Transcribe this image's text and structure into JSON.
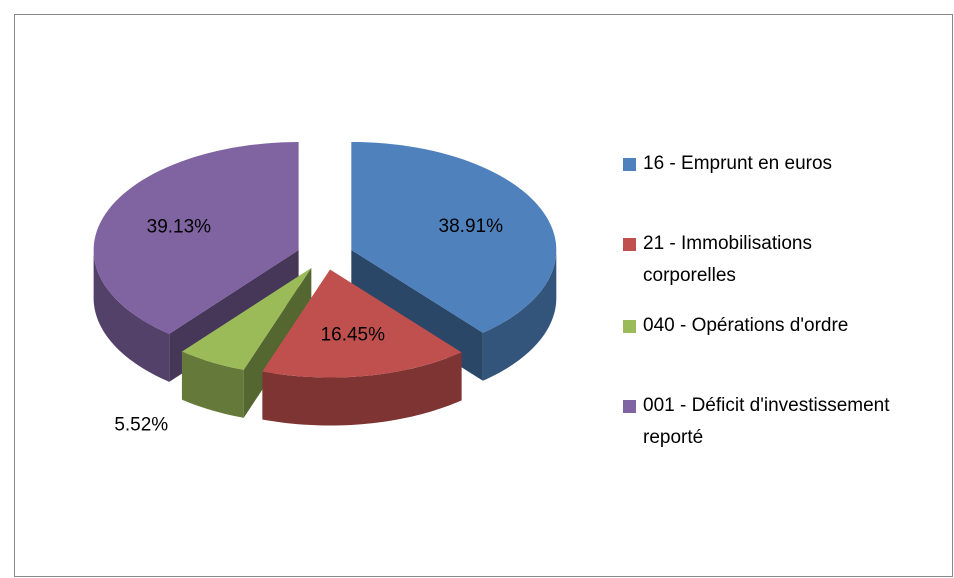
{
  "chart_data": {
    "type": "pie3d",
    "categories": [
      "16 - Emprunt en euros",
      "21 - Immobilisations corporelles",
      "040 - Opérations d'ordre",
      "001 - Déficit d'investissement reporté"
    ],
    "values": [
      38.91,
      16.45,
      5.52,
      39.13
    ],
    "value_labels": [
      "38.91%",
      "16.45%",
      "5.52%",
      "39.13%"
    ],
    "colors": [
      "#4f81bd",
      "#c0504d",
      "#9bbb59",
      "#8064a2"
    ],
    "legend": "right"
  }
}
